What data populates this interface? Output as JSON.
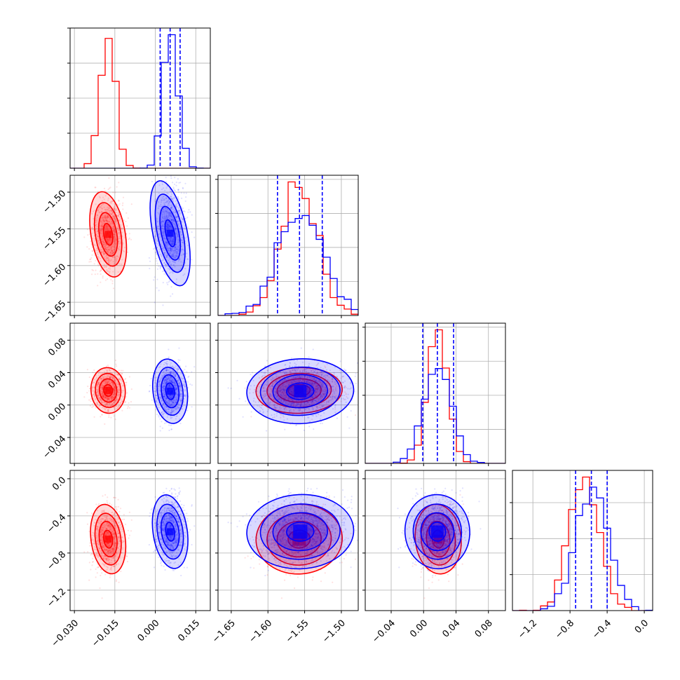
{
  "chart_data": {
    "type": "corner",
    "grid": true,
    "parameters": [
      {
        "range": [
          -0.0316,
          0.0204
        ],
        "ticks": [
          -0.03,
          -0.015,
          0.0,
          0.015
        ],
        "tick_labels": [
          "−0.030",
          "−0.015",
          "0.000",
          "0.015"
        ]
      },
      {
        "range": [
          -1.668,
          -1.477
        ],
        "ticks": [
          -1.65,
          -1.6,
          -1.55,
          -1.5
        ],
        "tick_labels": [
          "−1.65",
          "−1.60",
          "−1.55",
          "−1.50"
        ]
      },
      {
        "range": [
          -0.072,
          0.101
        ],
        "ticks": [
          -0.04,
          0.0,
          0.04,
          0.08
        ],
        "tick_labels": [
          "−0.04",
          "0.00",
          "0.04",
          "0.08"
        ]
      },
      {
        "range": [
          -1.42,
          0.09
        ],
        "ticks": [
          -1.2,
          -0.8,
          -0.4,
          0.0
        ],
        "tick_labels": [
          "−1.2",
          "−0.8",
          "−0.4",
          "0.0"
        ]
      }
    ],
    "series": [
      {
        "color": "#ff0000",
        "mean": [
          -0.0175,
          -1.5575,
          0.018,
          -0.65
        ],
        "std": [
          0.0027,
          0.025,
          0.012,
          0.16
        ]
      },
      {
        "color": "#0000ff",
        "mean": [
          0.0055,
          -1.556,
          0.017,
          -0.57
        ],
        "std": [
          0.0027,
          0.031,
          0.017,
          0.17
        ]
      }
    ],
    "quantile_lines": {
      "color": "#0000ff",
      "values": [
        [
          0.0018,
          0.0055,
          0.0092
        ],
        [
          -1.587,
          -1.557,
          -1.526
        ],
        [
          -0.001,
          0.017,
          0.037
        ],
        [
          -0.74,
          -0.57,
          -0.4
        ]
      ]
    }
  }
}
